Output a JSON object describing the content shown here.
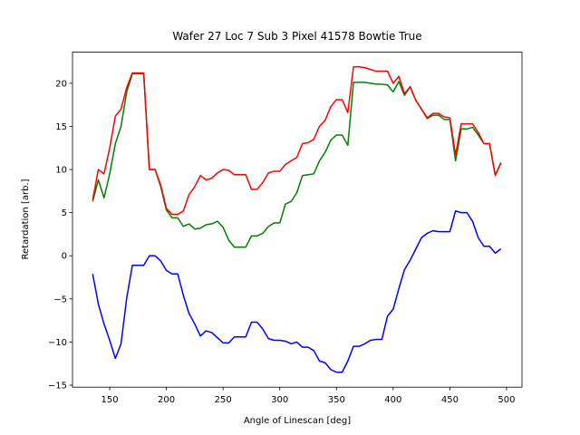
{
  "chart_data": {
    "type": "line",
    "title": "Wafer 27 Loc 7 Sub 3 Pixel 41578 Bowtie True",
    "x_label": "Angle of Linescan [deg]",
    "y_label": "Retardation [arb.]",
    "x": [
      135,
      140,
      145,
      150,
      155,
      160,
      165,
      170,
      175,
      180,
      185,
      190,
      195,
      200,
      205,
      210,
      215,
      220,
      225,
      230,
      235,
      240,
      245,
      250,
      255,
      260,
      265,
      270,
      275,
      280,
      285,
      290,
      295,
      300,
      305,
      310,
      315,
      320,
      325,
      330,
      335,
      340,
      345,
      350,
      355,
      360,
      365,
      370,
      375,
      380,
      385,
      390,
      395,
      400,
      405,
      410,
      415,
      420,
      425,
      430,
      435,
      440,
      445,
      450,
      455,
      460,
      465,
      470,
      475,
      480,
      485,
      490,
      495
    ],
    "series": [
      {
        "color": "#008000",
        "values": [
          6.3,
          8.8,
          6.7,
          9.5,
          13,
          15,
          19,
          21.1,
          21.1,
          21.1,
          10,
          10,
          8,
          5.3,
          4.4,
          4.4,
          3.4,
          3.7,
          3.1,
          3.2,
          3.6,
          3.7,
          4,
          3.3,
          1.8,
          1,
          1,
          1,
          2.3,
          2.3,
          2.6,
          3.4,
          3.8,
          3.8,
          6,
          6.3,
          7.3,
          9.3,
          9.4,
          9.5,
          11,
          12,
          13.4,
          14,
          14,
          12.8,
          20.1,
          20.1,
          20.1,
          20,
          19.9,
          19.9,
          19.8,
          19,
          20.2,
          18.6,
          19.6,
          18,
          17,
          15.9,
          16.3,
          16.3,
          15.8,
          15.8,
          11,
          14.7,
          14.7,
          14.9,
          14,
          13,
          13,
          9.4,
          10.7
        ]
      },
      {
        "color": "#ff0000",
        "values": [
          6.5,
          10,
          9.5,
          12.5,
          16.2,
          17,
          19.5,
          21.2,
          21.2,
          21.2,
          10,
          10,
          8.2,
          5.5,
          4.8,
          4.8,
          5.2,
          7.1,
          8,
          9.3,
          8.8,
          9,
          9.6,
          10,
          9.9,
          9.4,
          9.4,
          9.4,
          7.7,
          7.7,
          8.5,
          9.6,
          9.8,
          9.8,
          10.6,
          11,
          11.4,
          13,
          13.1,
          13.5,
          15,
          15.7,
          17.3,
          18.1,
          18.1,
          16.6,
          21.9,
          21.9,
          21.8,
          21.6,
          21.4,
          21.4,
          21.4,
          20,
          20.8,
          18.8,
          19.6,
          18,
          17,
          16,
          16.5,
          16.5,
          16.1,
          16,
          11.7,
          15.3,
          15.3,
          15.3,
          14.3,
          13,
          13,
          9.3,
          10.8
        ]
      },
      {
        "color": "#0000ff",
        "values": [
          -2.1,
          -5.6,
          -7.9,
          -9.8,
          -11.9,
          -10.2,
          -4.9,
          -1.1,
          -1.1,
          -1.1,
          0,
          0,
          -0.6,
          -1.7,
          -2.1,
          -2.1,
          -4.6,
          -6.7,
          -7.9,
          -9.3,
          -8.7,
          -8.9,
          -9.5,
          -10.1,
          -10.1,
          -9.4,
          -9.4,
          -9.4,
          -7.7,
          -7.7,
          -8.5,
          -9.6,
          -9.8,
          -9.8,
          -9.9,
          -10.2,
          -10,
          -10.6,
          -10.6,
          -11,
          -12.2,
          -12.4,
          -13.2,
          -13.5,
          -13.5,
          -12.2,
          -10.5,
          -10.5,
          -10.2,
          -9.8,
          -9.7,
          -9.7,
          -7,
          -6.2,
          -3.8,
          -1.6,
          -0.5,
          0.8,
          2.1,
          2.6,
          2.9,
          2.8,
          2.8,
          2.8,
          5.2,
          5,
          5,
          4,
          2.1,
          1.1,
          1.1,
          0.3,
          0.8
        ]
      }
    ],
    "xlim": [
      117.2,
      513.6
    ],
    "ylim": [
      -15.23,
      23.6
    ],
    "xticks": [
      150,
      200,
      250,
      300,
      350,
      400,
      450,
      500
    ],
    "yticks": [
      {
        "value": -15,
        "label": "−15"
      },
      {
        "value": -10,
        "label": "−10"
      },
      {
        "value": -5,
        "label": "−5"
      },
      0,
      5,
      10,
      15,
      20
    ],
    "grid": false
  }
}
